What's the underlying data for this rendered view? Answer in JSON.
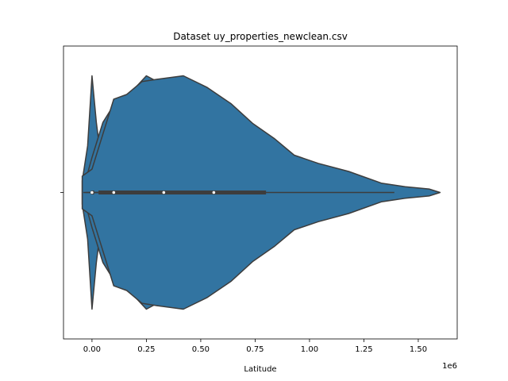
{
  "chart_data": {
    "type": "violin",
    "title": "Dataset uy_properties_newclean.csv",
    "xlabel": "Latitude",
    "offset_label": "1e6",
    "color": "#3274a1",
    "xlim": [
      -0.131,
      1.679
    ],
    "xticks": [
      {
        "value": 0,
        "label": "0.00"
      },
      {
        "value": 0.25,
        "label": "0.25"
      },
      {
        "value": 0.5,
        "label": "0.50"
      },
      {
        "value": 0.75,
        "label": "0.75"
      },
      {
        "value": 1,
        "label": "1.00"
      },
      {
        "value": 1.25,
        "label": "1.25"
      },
      {
        "value": 1.5,
        "label": "1.50"
      }
    ],
    "violins": [
      {
        "x": [
          -0.045,
          -0.02,
          0,
          0.02,
          0.04,
          0.07,
          0.1,
          0.15
        ],
        "density": [
          0.1,
          0.4,
          1.0,
          0.6,
          0.3,
          0.15,
          0.1,
          0
        ],
        "q1": -0.005,
        "median": 0,
        "q3": 0.01,
        "whisker_low": -0.04,
        "whisker_high": 0.05
      },
      {
        "x": [
          -0.03,
          0,
          0.05,
          0.1,
          0.15,
          0.2,
          0.25,
          0.3,
          0.4,
          0.5,
          0.6
        ],
        "density": [
          0.1,
          0.3,
          0.6,
          0.75,
          0.8,
          0.9,
          1.0,
          0.95,
          0.5,
          0.15,
          0
        ],
        "q1": 0.03,
        "median": 0.1,
        "q3": 0.2,
        "whisker_low": -0.03,
        "whisker_high": 0.45
      },
      {
        "x": [
          -0.03,
          0,
          0.1,
          0.2,
          0.3,
          0.4,
          0.5,
          0.6,
          0.8
        ],
        "density": [
          0.1,
          0.2,
          0.4,
          0.7,
          0.97,
          0.8,
          0.45,
          0.2,
          0
        ],
        "q1": 0.18,
        "median": 0.33,
        "q3": 0.45,
        "whisker_low": 0,
        "whisker_high": 0.8
      },
      {
        "x": [
          -0.045,
          0,
          0.05,
          0.1,
          0.16,
          0.23,
          0.3,
          0.42,
          0.53,
          0.64,
          0.74,
          0.84,
          0.93,
          1.04,
          1.18,
          1.33,
          1.44,
          1.55,
          1.6
        ],
        "density": [
          0.14,
          0.2,
          0.5,
          0.8,
          0.84,
          0.95,
          0.97,
          1.0,
          0.9,
          0.76,
          0.59,
          0.46,
          0.32,
          0.25,
          0.18,
          0.08,
          0.05,
          0.03,
          0
        ],
        "q1": 0.3,
        "median": 0.56,
        "q3": 0.8,
        "whisker_low": 0,
        "whisker_high": 1.39
      }
    ]
  }
}
